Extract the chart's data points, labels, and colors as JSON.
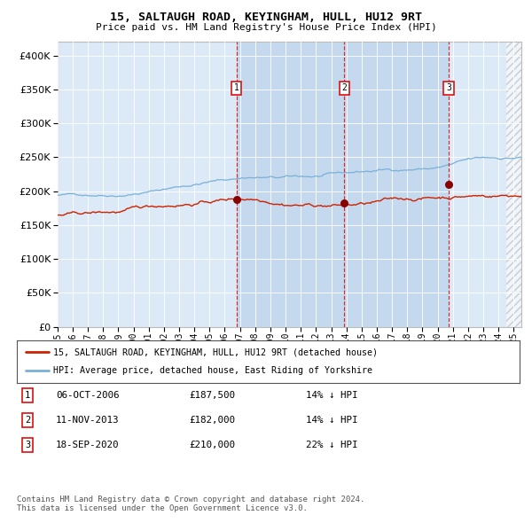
{
  "title": "15, SALTAUGH ROAD, KEYINGHAM, HULL, HU12 9RT",
  "subtitle": "Price paid vs. HM Land Registry's House Price Index (HPI)",
  "sale_dates_num": [
    2006.76,
    2013.86,
    2020.72
  ],
  "sale_prices": [
    187500,
    182000,
    210000
  ],
  "sale_labels": [
    "1",
    "2",
    "3"
  ],
  "legend_red": "15, SALTAUGH ROAD, KEYINGHAM, HULL, HU12 9RT (detached house)",
  "legend_blue": "HPI: Average price, detached house, East Riding of Yorkshire",
  "table": [
    [
      "1",
      "06-OCT-2006",
      "£187,500",
      "14% ↓ HPI"
    ],
    [
      "2",
      "11-NOV-2013",
      "£182,000",
      "14% ↓ HPI"
    ],
    [
      "3",
      "18-SEP-2020",
      "£210,000",
      "22% ↓ HPI"
    ]
  ],
  "footer": "Contains HM Land Registry data © Crown copyright and database right 2024.\nThis data is licensed under the Open Government Licence v3.0.",
  "xmin": 1995.0,
  "xmax": 2025.5,
  "ymin": 0,
  "ymax": 420000,
  "chart_bg": "#dce9f7",
  "shade_color": "#c5d9ee",
  "shade_start": 2006.76,
  "shade_end": 2020.72,
  "hatch_start": 2024.5,
  "hpi_color": "#7ab0d8",
  "price_color": "#cc2200",
  "marker_color": "#880000",
  "label_box_color": "#dd1111",
  "grid_color": "#ffffff",
  "yticks": [
    0,
    50000,
    100000,
    150000,
    200000,
    250000,
    300000,
    350000,
    400000
  ],
  "xtick_start": 1995,
  "xtick_end": 2025
}
